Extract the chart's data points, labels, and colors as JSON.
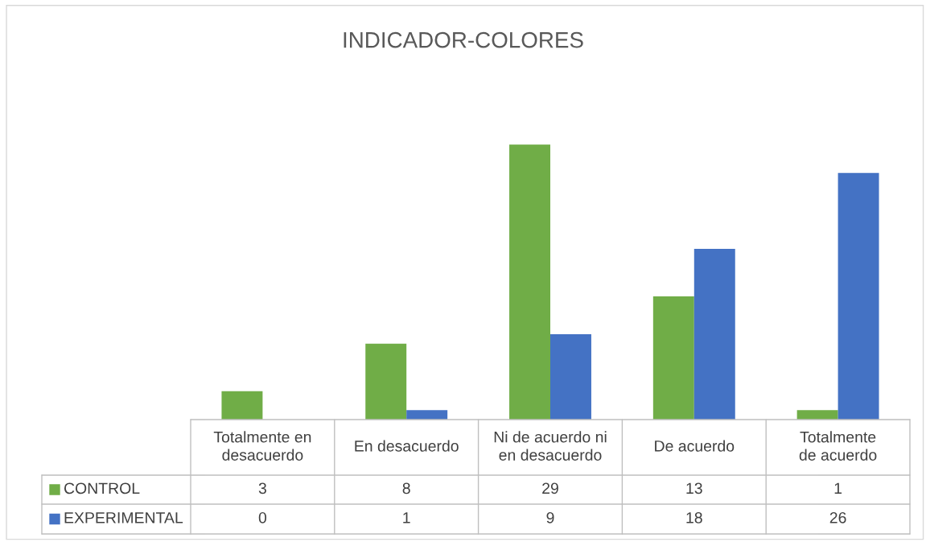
{
  "chart_data": {
    "type": "bar",
    "title": "INDICADOR-COLORES",
    "categories": [
      "Totalmente en desacuerdo",
      "En desacuerdo",
      "Ni de acuerdo ni en desacuerdo",
      "De acuerdo",
      "Totalmente de acuerdo"
    ],
    "series": [
      {
        "name": "CONTROL",
        "color": "#70ad47",
        "values": [
          3,
          8,
          29,
          13,
          1
        ]
      },
      {
        "name": "EXPERIMENTAL",
        "color": "#4472c4",
        "values": [
          0,
          1,
          9,
          18,
          26
        ]
      }
    ],
    "data_labels": true,
    "legend": "bottom left"
  }
}
